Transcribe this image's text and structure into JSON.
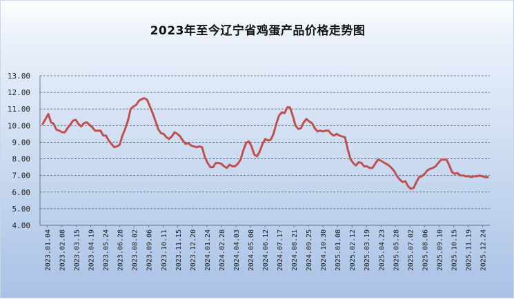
{
  "chart_data": {
    "type": "line",
    "title": "2023年至今辽宁省鸡蛋产品价格走势图",
    "xlabel": "",
    "ylabel": "",
    "ylim": [
      4.0,
      13.0
    ],
    "yticks": [
      "4.00",
      "5.00",
      "6.00",
      "7.00",
      "8.00",
      "9.00",
      "10.00",
      "11.00",
      "12.00",
      "13.00"
    ],
    "grid": true,
    "line_color": "#c0504d",
    "x_tick_labels": [
      "2023.01.04",
      "2023.02.08",
      "2023.03.15",
      "2023.04.19",
      "2023.05.24",
      "2023.06.28",
      "2023.08.02",
      "2023.09.06",
      "2023.10.11",
      "2023.11.15",
      "2023.12.20",
      "2024.01.24",
      "2024.02.28",
      "2024.04.03",
      "2024.05.08",
      "2024.06.12",
      "2024.07.17",
      "2024.08.21",
      "2024.09.25",
      "2024.10.30",
      "2025.01.08",
      "2025.02.12",
      "2025.03.19",
      "2025.04.23",
      "2025.05.28",
      "2025.07.02",
      "2025.08.06",
      "2025.09.10",
      "2025.10.15",
      "2025.11.19",
      "2025.12.24"
    ],
    "series": [
      {
        "values": [
          10.1,
          10.4,
          10.7,
          10.2,
          10.1,
          9.75,
          9.7,
          9.6,
          9.6,
          9.85,
          10.05,
          10.3,
          10.35,
          10.1,
          9.95,
          10.15,
          10.2,
          10.05,
          9.9,
          9.7,
          9.7,
          9.7,
          9.4,
          9.4,
          9.1,
          8.9,
          8.7,
          8.75,
          8.85,
          9.4,
          9.8,
          10.3,
          11.0,
          11.15,
          11.25,
          11.5,
          11.6,
          11.65,
          11.55,
          11.15,
          10.75,
          10.3,
          9.8,
          9.55,
          9.5,
          9.3,
          9.2,
          9.35,
          9.6,
          9.5,
          9.35,
          9.1,
          8.9,
          8.95,
          8.8,
          8.75,
          8.7,
          8.75,
          8.7,
          8.1,
          7.75,
          7.5,
          7.5,
          7.75,
          7.75,
          7.7,
          7.55,
          7.45,
          7.65,
          7.55,
          7.55,
          7.7,
          7.95,
          8.5,
          8.95,
          9.05,
          8.75,
          8.25,
          8.15,
          8.45,
          8.9,
          9.2,
          9.1,
          9.15,
          9.5,
          10.1,
          10.6,
          10.8,
          10.75,
          11.1,
          11.1,
          10.6,
          10.0,
          9.8,
          9.85,
          10.2,
          10.4,
          10.25,
          10.15,
          9.85,
          9.65,
          9.7,
          9.65,
          9.7,
          9.7,
          9.5,
          9.4,
          9.5,
          9.4,
          9.35,
          9.3,
          8.6,
          8.0,
          7.75,
          7.6,
          7.8,
          7.75,
          7.55,
          7.55,
          7.45,
          7.45,
          7.7,
          7.95,
          7.9,
          7.8,
          7.7,
          7.6,
          7.45,
          7.25,
          6.95,
          6.75,
          6.6,
          6.65,
          6.35,
          6.2,
          6.25,
          6.6,
          6.9,
          6.95,
          7.1,
          7.3,
          7.4,
          7.45,
          7.55,
          7.75,
          7.95,
          7.95,
          7.95,
          7.6,
          7.2,
          7.1,
          7.15,
          7.0,
          7.0,
          6.95,
          6.95,
          6.9,
          6.95,
          6.95,
          7.0,
          6.95,
          6.9,
          6.9
        ]
      }
    ]
  }
}
